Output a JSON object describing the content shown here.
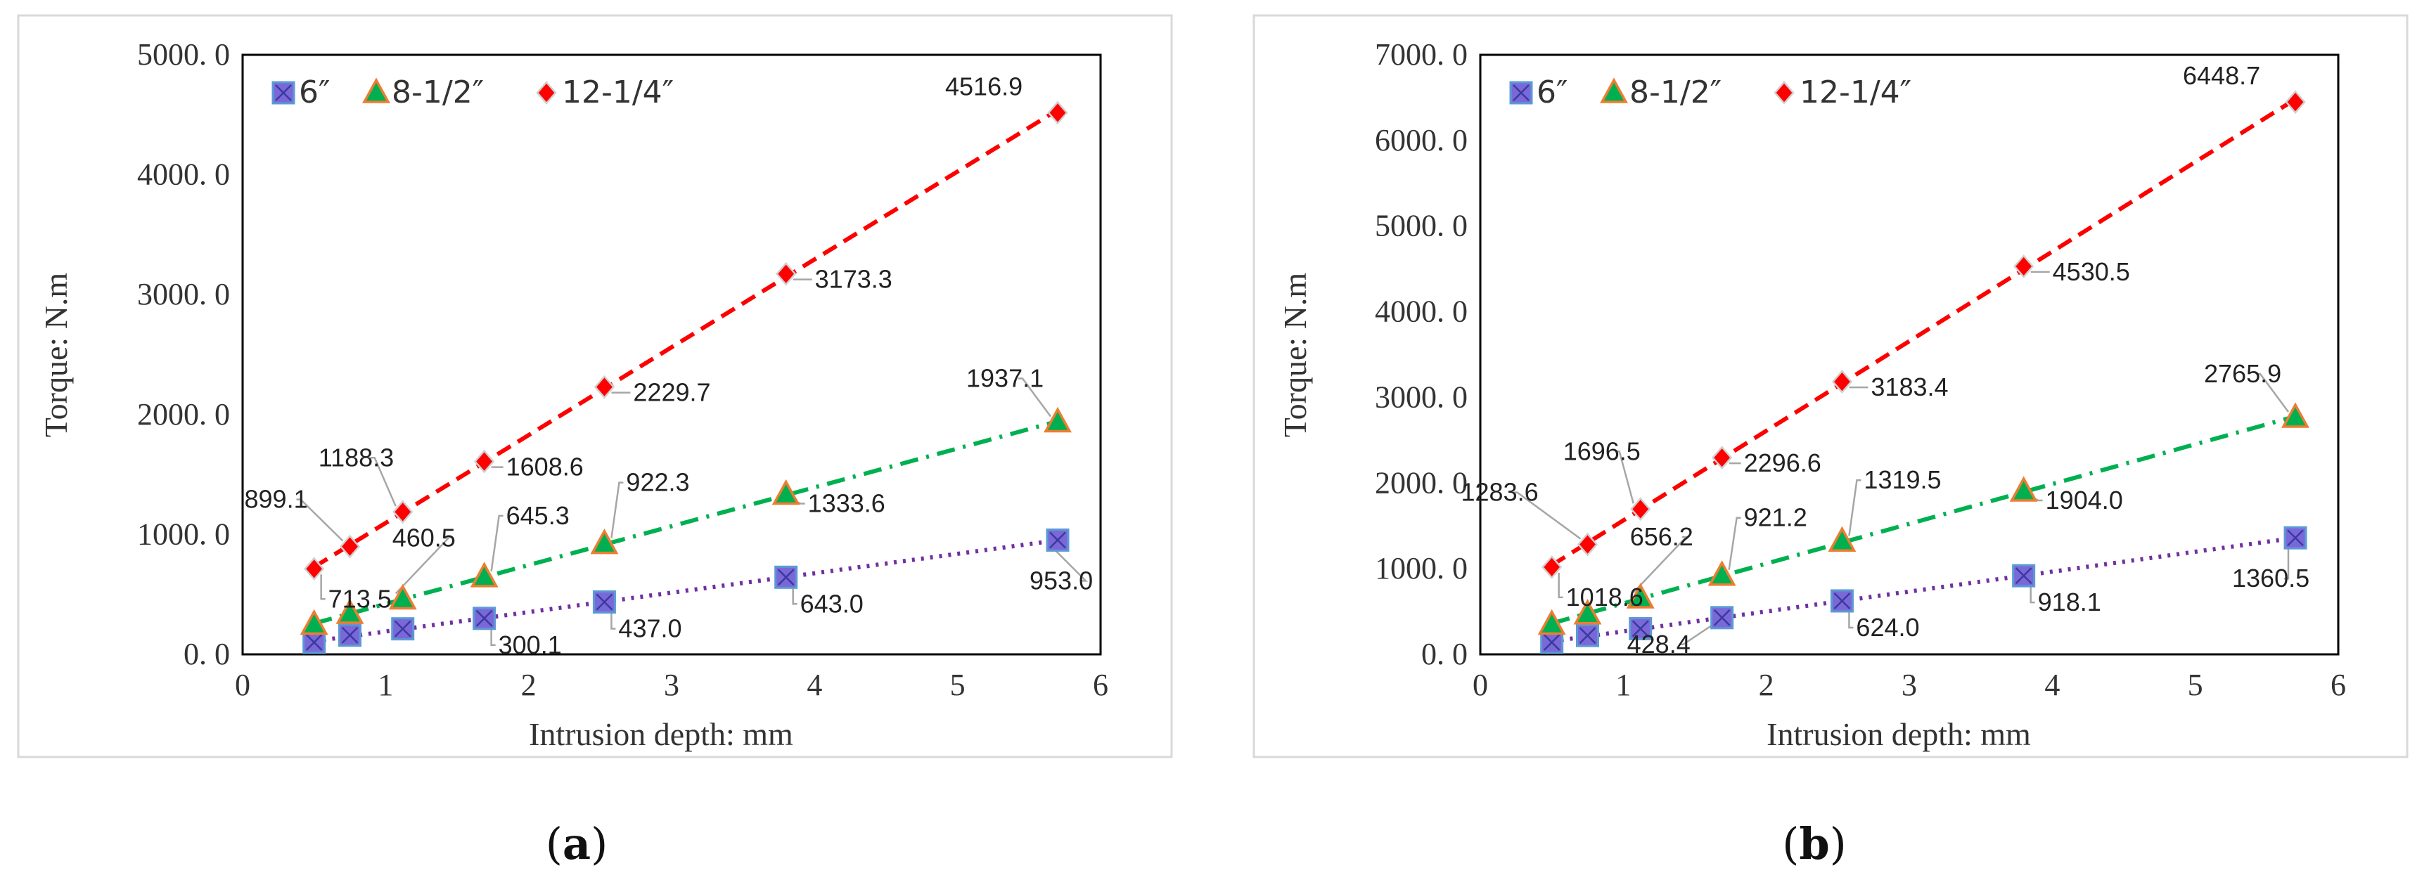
{
  "chart_data": [
    {
      "id": "a",
      "type": "scatter",
      "caption": "(a)",
      "caption_parts": [
        "(",
        "a",
        ")"
      ],
      "title": "",
      "xlabel": "Intrusion depth:  mm",
      "ylabel": "Torque:  N.m",
      "xlim": [
        0,
        6
      ],
      "ylim": [
        0,
        5000
      ],
      "xticks": [
        0,
        1,
        2,
        3,
        4,
        5,
        6
      ],
      "xtick_labels": [
        "0",
        "1",
        "2",
        "3",
        "4",
        "5",
        "6"
      ],
      "yticks": [
        0,
        1000,
        2000,
        3000,
        4000,
        5000
      ],
      "ytick_labels": [
        "0. 0",
        "1000. 0",
        "2000. 0",
        "3000. 0",
        "4000. 0",
        "5000. 0"
      ],
      "grid": false,
      "legend_position": "top-left",
      "x": [
        0.5,
        0.75,
        1.12,
        1.69,
        2.53,
        3.8,
        5.7
      ],
      "series": [
        {
          "name": "6″",
          "marker": "square-x",
          "color": "#7030A0",
          "line": "dotted",
          "values": [
            100.0,
            160.0,
            213.0,
            300.1,
            437.0,
            643.0,
            953.0
          ],
          "labels": [
            "",
            "",
            "",
            "300.1",
            "437.0",
            "643.0",
            "953.0"
          ]
        },
        {
          "name": "8-1/2″",
          "marker": "triangle",
          "color": "#00B050",
          "line": "dash-dot",
          "values": [
            250.0,
            340.0,
            460.5,
            645.3,
            922.3,
            1333.6,
            1937.1
          ],
          "labels": [
            "",
            "",
            "460.5",
            "645.3",
            "922.3",
            "1333.6",
            "1937.1"
          ]
        },
        {
          "name": "12-1/4″",
          "marker": "diamond",
          "color": "#FF0000",
          "line": "dashed",
          "values": [
            713.5,
            899.1,
            1188.3,
            1608.6,
            2229.7,
            3173.3,
            4516.9
          ],
          "labels": [
            "713.5",
            "899.1",
            "1188.3",
            "1608.6",
            "2229.7",
            "3173.3",
            "4516.9"
          ]
        }
      ]
    },
    {
      "id": "b",
      "type": "scatter",
      "caption": "(b)",
      "caption_parts": [
        "(",
        "b",
        ")"
      ],
      "title": "",
      "xlabel": "Intrusion depth:  mm",
      "ylabel": "Torque:  N.m",
      "xlim": [
        0,
        6
      ],
      "ylim": [
        0,
        7000
      ],
      "xticks": [
        0,
        1,
        2,
        3,
        4,
        5,
        6
      ],
      "xtick_labels": [
        "0",
        "1",
        "2",
        "3",
        "4",
        "5",
        "6"
      ],
      "yticks": [
        0,
        1000,
        2000,
        3000,
        4000,
        5000,
        6000,
        7000
      ],
      "ytick_labels": [
        "0. 0",
        "1000. 0",
        "2000. 0",
        "3000. 0",
        "4000. 0",
        "5000. 0",
        "6000. 0",
        "7000. 0"
      ],
      "grid": false,
      "legend_position": "top-left",
      "x": [
        0.5,
        0.75,
        1.12,
        1.69,
        2.53,
        3.8,
        5.7
      ],
      "series": [
        {
          "name": "6″",
          "marker": "square-x",
          "color": "#7030A0",
          "line": "dotted",
          "values": [
            140.0,
            220.0,
            300.0,
            428.4,
            624.0,
            918.1,
            1360.5
          ],
          "labels": [
            "",
            "",
            "",
            "428.4",
            "624.0",
            "918.1",
            "1360.5"
          ]
        },
        {
          "name": "8-1/2″",
          "marker": "triangle",
          "color": "#00B050",
          "line": "dash-dot",
          "values": [
            350.0,
            470.0,
            656.2,
            921.2,
            1319.5,
            1904.0,
            2765.9
          ],
          "labels": [
            "",
            "",
            "656.2",
            "921.2",
            "1319.5",
            "1904.0",
            "2765.9"
          ]
        },
        {
          "name": "12-1/4″",
          "marker": "diamond",
          "color": "#FF0000",
          "line": "dashed",
          "values": [
            1018.6,
            1283.6,
            1696.5,
            2296.6,
            3183.4,
            4530.5,
            6448.7
          ],
          "labels": [
            "1018.6",
            "1283.6",
            "1696.5",
            "2296.6",
            "3183.4",
            "4530.5",
            "6448.7"
          ]
        }
      ]
    }
  ]
}
